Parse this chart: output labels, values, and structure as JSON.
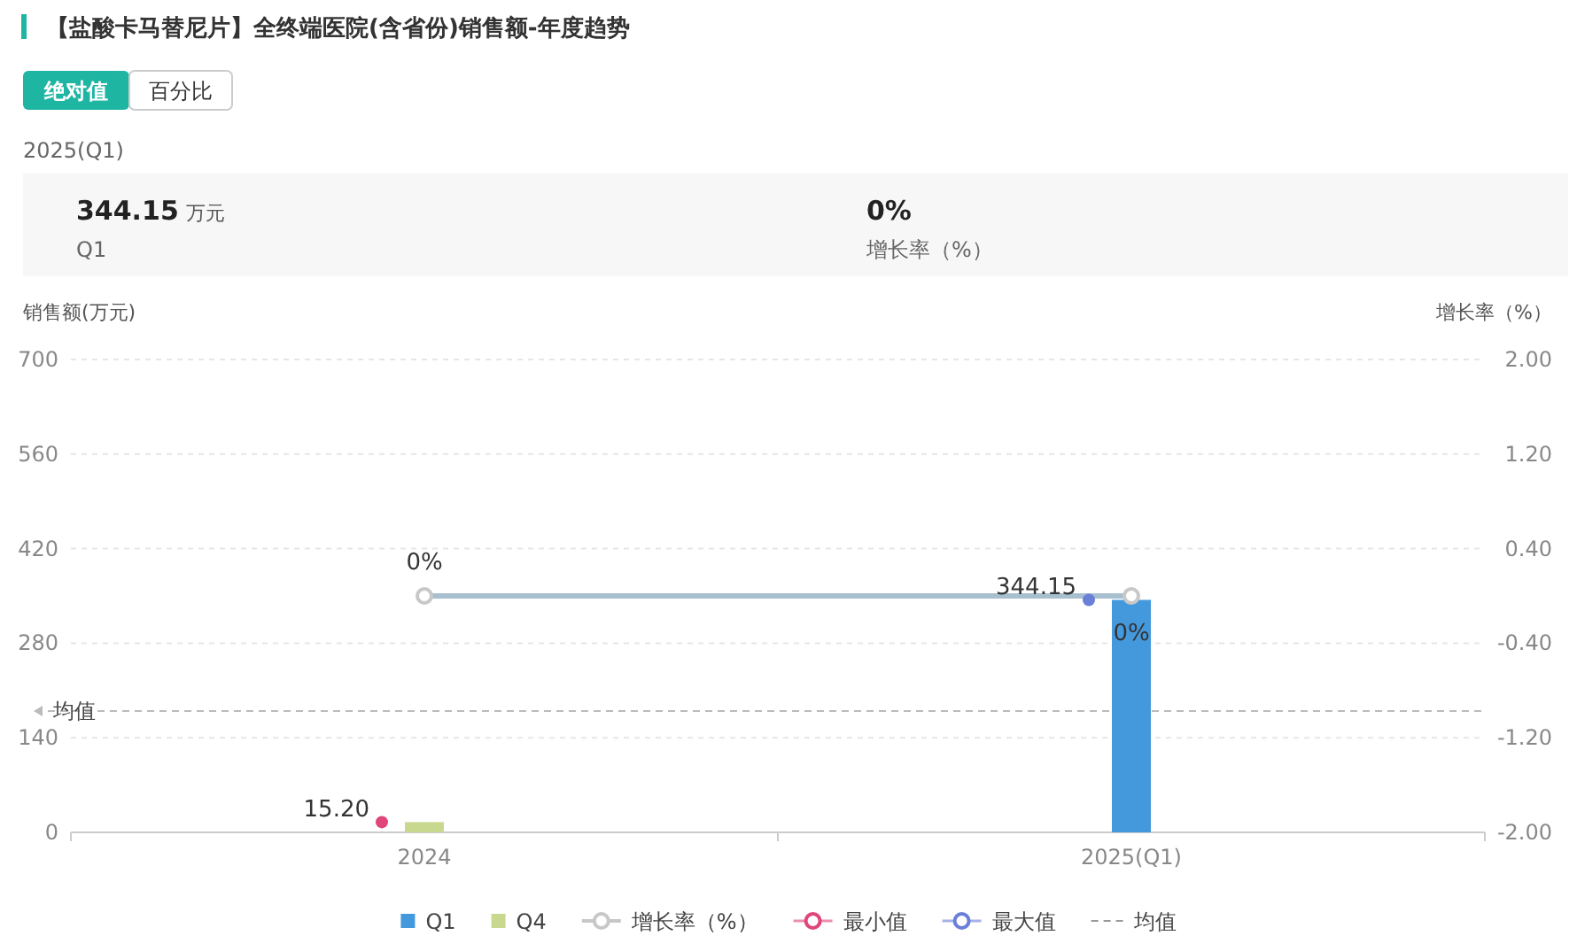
{
  "chart_data": {
    "type": "bar",
    "title": "【盐酸卡马替尼片】全终端医院(含省份)销售额-年度趋势",
    "annotations": [
      "绝对值",
      "百分比",
      "2025(Q1)",
      "344.15 万元",
      "Q1",
      "0%",
      "增长率（%）"
    ],
    "ylabel": "销售额(万元)",
    "y2label": "增长率（%）",
    "categories": [
      "2024",
      "2025(Q1)"
    ],
    "series": [
      {
        "name": "Q1",
        "color": "#4499dd",
        "values": [
          null,
          344.15
        ]
      },
      {
        "name": "Q4",
        "color": "#c8d98f",
        "values": [
          15.2,
          null
        ]
      },
      {
        "name": "增长率（%）",
        "type": "line",
        "axis": "y2",
        "color": "#a8bfd0",
        "marker": "circle",
        "values": [
          0,
          0
        ],
        "value_labels": [
          "0%",
          "0%"
        ]
      },
      {
        "name": "最小值",
        "type": "scatter",
        "color": "#e0457b",
        "values": [
          15.2,
          null
        ],
        "value_labels": [
          "15.20",
          null
        ]
      },
      {
        "name": "最大值",
        "type": "scatter",
        "color": "#6a7fd8",
        "values": [
          null,
          344.15
        ],
        "value_labels": [
          null,
          "344.15"
        ]
      }
    ],
    "ref_lines": [
      {
        "axis": "y",
        "value": 179.68,
        "label": "均值",
        "color": "#bbbbbb",
        "line_style": "dashed"
      }
    ],
    "ylim": [
      0,
      700
    ],
    "yticks": [
      0,
      140,
      280,
      420,
      560,
      700
    ],
    "y2lim": [
      -2,
      2
    ],
    "y2ticks": [
      {
        "value": -2,
        "label": "-2.00"
      },
      {
        "value": -1.2,
        "label": "-1.20"
      },
      {
        "value": -0.4,
        "label": "-0.40"
      },
      {
        "value": 0.4,
        "label": "0.40"
      },
      {
        "value": 1.2,
        "label": "1.20"
      },
      {
        "value": 2,
        "label": "2.00"
      }
    ],
    "grid": "y",
    "legend": "bottom"
  }
}
